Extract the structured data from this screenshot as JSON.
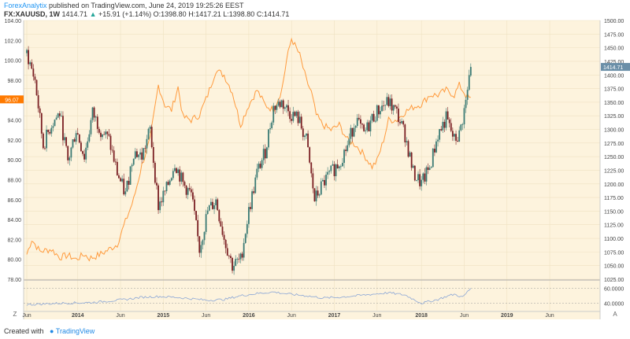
{
  "header": {
    "author": "ForexAnalytix",
    "published_text": "published on TradingView.com, June 24, 2019 19:25:26 EEST",
    "symbol": "FX:XAUUSD, 1W",
    "last_value": "1414.71",
    "change": "+15.91 (+1.14%)",
    "ohlc_o_label": "O:",
    "ohlc_o": "1398.80",
    "ohlc_h_label": "H:",
    "ohlc_h": "1417.21",
    "ohlc_l_label": "L:",
    "ohlc_l": "1398.80",
    "ohlc_c_label": "C:",
    "ohlc_c": "1414.71"
  },
  "footer": {
    "created_with": "Created with",
    "brand": "TradingView"
  },
  "axis_buttons": {
    "left": "Z",
    "right": "A"
  },
  "colors": {
    "plot_bg": "#fdf3dd",
    "bull": "#3a7a74",
    "bear": "#7a1f23",
    "overlay": "#ff9a3c",
    "indicator": "#8aa6d6",
    "price_badge": "#ff7a00",
    "last_badge": "#6b8fa8"
  },
  "chart_data": {
    "type": "line",
    "series": [
      {
        "name": "FX:XAUUSD",
        "kind": "candlestick",
        "axis": "right",
        "ylim": [
          1025,
          1500
        ],
        "anchors": [
          [
            0,
            1440
          ],
          [
            5,
            1390
          ],
          [
            10,
            1270
          ],
          [
            15,
            1310
          ],
          [
            20,
            1330
          ],
          [
            25,
            1240
          ],
          [
            30,
            1300
          ],
          [
            35,
            1250
          ],
          [
            40,
            1330
          ],
          [
            45,
            1300
          ],
          [
            50,
            1280
          ],
          [
            55,
            1220
          ],
          [
            60,
            1180
          ],
          [
            65,
            1260
          ],
          [
            70,
            1250
          ],
          [
            75,
            1300
          ],
          [
            80,
            1160
          ],
          [
            85,
            1190
          ],
          [
            90,
            1240
          ],
          [
            95,
            1200
          ],
          [
            100,
            1180
          ],
          [
            105,
            1080
          ],
          [
            110,
            1150
          ],
          [
            115,
            1170
          ],
          [
            120,
            1100
          ],
          [
            125,
            1050
          ],
          [
            130,
            1060
          ],
          [
            135,
            1150
          ],
          [
            140,
            1220
          ],
          [
            145,
            1260
          ],
          [
            150,
            1340
          ],
          [
            155,
            1350
          ],
          [
            160,
            1330
          ],
          [
            165,
            1320
          ],
          [
            170,
            1280
          ],
          [
            175,
            1170
          ],
          [
            180,
            1200
          ],
          [
            185,
            1220
          ],
          [
            190,
            1240
          ],
          [
            195,
            1270
          ],
          [
            200,
            1320
          ],
          [
            205,
            1290
          ],
          [
            210,
            1320
          ],
          [
            215,
            1340
          ],
          [
            220,
            1350
          ],
          [
            225,
            1330
          ],
          [
            230,
            1290
          ],
          [
            235,
            1220
          ],
          [
            240,
            1200
          ],
          [
            245,
            1230
          ],
          [
            250,
            1290
          ],
          [
            255,
            1320
          ],
          [
            260,
            1280
          ],
          [
            263,
            1290
          ],
          [
            267,
            1350
          ],
          [
            270,
            1414.71
          ]
        ]
      },
      {
        "name": "overlay",
        "kind": "line",
        "axis": "left",
        "ylim": [
          78.0,
          104.0
        ],
        "anchors": [
          [
            0,
            80.5
          ],
          [
            3,
            82.0
          ],
          [
            8,
            80.8
          ],
          [
            15,
            81.0
          ],
          [
            20,
            80.2
          ],
          [
            25,
            80.4
          ],
          [
            30,
            80.0
          ],
          [
            35,
            80.5
          ],
          [
            38,
            80.1
          ],
          [
            42,
            80.3
          ],
          [
            47,
            80.7
          ],
          [
            55,
            81.5
          ],
          [
            60,
            83.8
          ],
          [
            65,
            86.0
          ],
          [
            70,
            89.5
          ],
          [
            75,
            92.0
          ],
          [
            80,
            97.5
          ],
          [
            84,
            95.5
          ],
          [
            88,
            95.0
          ],
          [
            92,
            97.3
          ],
          [
            95,
            94.3
          ],
          [
            100,
            94.0
          ],
          [
            105,
            94.5
          ],
          [
            110,
            96.5
          ],
          [
            115,
            99.0
          ],
          [
            120,
            98.5
          ],
          [
            125,
            96.8
          ],
          [
            130,
            93.5
          ],
          [
            135,
            95.5
          ],
          [
            140,
            97.0
          ],
          [
            145,
            95.5
          ],
          [
            150,
            95.0
          ],
          [
            155,
            97.0
          ],
          [
            158,
            100.0
          ],
          [
            161,
            102.2
          ],
          [
            163,
            101.5
          ],
          [
            166,
            100.5
          ],
          [
            170,
            98.0
          ],
          [
            173,
            96.8
          ],
          [
            176,
            94.5
          ],
          [
            180,
            93.5
          ],
          [
            185,
            93.0
          ],
          [
            190,
            93.5
          ],
          [
            195,
            92.0
          ],
          [
            200,
            91.5
          ],
          [
            205,
            90.5
          ],
          [
            210,
            89.3
          ],
          [
            213,
            89.9
          ],
          [
            217,
            92.0
          ],
          [
            220,
            94.0
          ],
          [
            225,
            94.0
          ],
          [
            230,
            94.8
          ],
          [
            235,
            95.3
          ],
          [
            240,
            95.6
          ],
          [
            245,
            96.5
          ],
          [
            250,
            96.5
          ],
          [
            255,
            97.0
          ],
          [
            260,
            96.5
          ],
          [
            263,
            97.5
          ],
          [
            267,
            96.5
          ],
          [
            270,
            96.07
          ]
        ]
      },
      {
        "name": "indicator",
        "kind": "line",
        "axis": "indicator",
        "ylim": [
          30,
          70
        ],
        "anchors": [
          [
            0,
            38
          ],
          [
            20,
            40
          ],
          [
            40,
            41
          ],
          [
            60,
            45
          ],
          [
            70,
            48
          ],
          [
            80,
            49
          ],
          [
            90,
            48
          ],
          [
            100,
            46
          ],
          [
            110,
            44
          ],
          [
            120,
            45
          ],
          [
            130,
            50
          ],
          [
            140,
            53
          ],
          [
            150,
            55
          ],
          [
            160,
            52
          ],
          [
            170,
            50
          ],
          [
            180,
            47
          ],
          [
            190,
            48
          ],
          [
            200,
            50
          ],
          [
            210,
            52
          ],
          [
            220,
            54
          ],
          [
            230,
            51
          ],
          [
            240,
            40
          ],
          [
            250,
            45
          ],
          [
            255,
            49
          ],
          [
            260,
            52
          ],
          [
            265,
            48
          ],
          [
            270,
            60
          ]
        ]
      }
    ],
    "x_ticks": [
      "Jun",
      "2014",
      "Jun",
      "2015",
      "Jun",
      "2016",
      "Jun",
      "2017",
      "Jun",
      "2018",
      "Jun",
      "2019",
      "Jun"
    ],
    "x_tick_weeks": [
      0,
      31,
      57,
      83,
      109,
      135,
      161,
      187,
      213,
      240,
      266,
      292,
      318
    ],
    "left_ticks": [
      "104.00",
      "102.00",
      "100.00",
      "98.00",
      "96.00",
      "94.00",
      "92.00",
      "90.00",
      "88.00",
      "86.00",
      "84.00",
      "82.00",
      "80.00",
      "78.00"
    ],
    "right_ticks": [
      "1500.00",
      "1475.00",
      "1450.00",
      "1425.00",
      "1400.00",
      "1375.00",
      "1350.00",
      "1325.00",
      "1300.00",
      "1275.00",
      "1250.00",
      "1225.00",
      "1200.00",
      "1175.00",
      "1150.00",
      "1125.00",
      "1100.00",
      "1075.00",
      "1050.00",
      "1025.00"
    ],
    "indicator_ticks": [
      "60.0000",
      "40.0000"
    ],
    "left_badge": "96.07",
    "last_badge": "1414.71"
  }
}
